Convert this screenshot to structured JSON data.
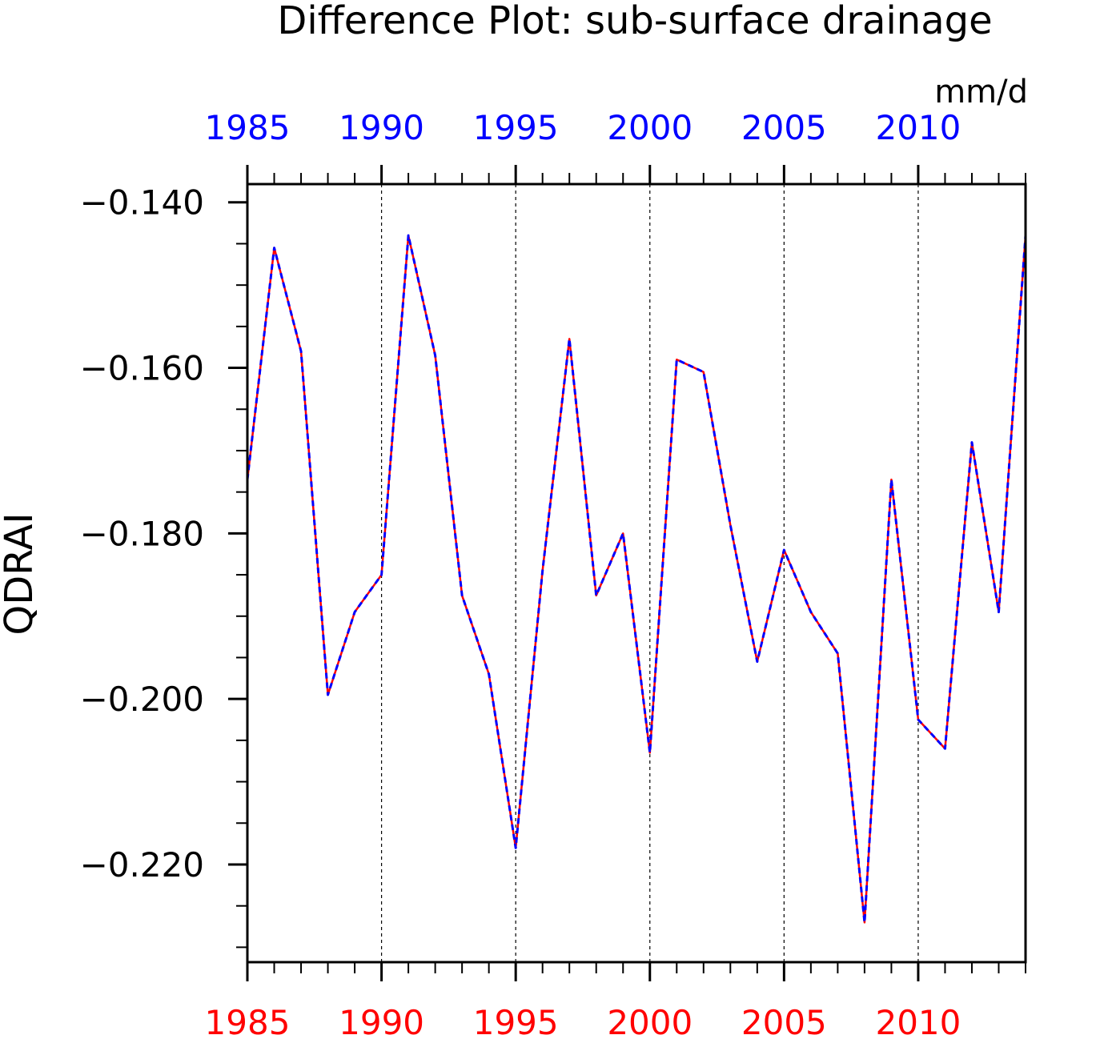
{
  "chart_data": {
    "type": "line",
    "title": "Difference Plot: sub-surface drainage",
    "units": "mm/d",
    "ylabel": "QDRAI",
    "xlabel": "",
    "xlim": [
      1985,
      2014
    ],
    "ylim": [
      -0.2318,
      -0.1378
    ],
    "x_ticks": [
      1985,
      1990,
      1995,
      2000,
      2005,
      2010
    ],
    "x_tick_labels": [
      "1985",
      "1990",
      "1995",
      "2000",
      "2005",
      "2010"
    ],
    "y_ticks": [
      -0.14,
      -0.16,
      -0.18,
      -0.2,
      -0.22
    ],
    "y_tick_labels": [
      "−0.140",
      "−0.160",
      "−0.180",
      "−0.200",
      "−0.220"
    ],
    "grid": "vertical dashed at major x ticks",
    "colors": {
      "top_axis_labels": "#0000ff",
      "bottom_axis_labels": "#ff0000",
      "series_red": "#ff0000",
      "series_blue": "#0000ff",
      "axes": "#000000"
    },
    "x": [
      1985,
      1986,
      1987,
      1988,
      1989,
      1990,
      1991,
      1992,
      1993,
      1994,
      1995,
      1996,
      1997,
      1998,
      1999,
      2000,
      2001,
      2002,
      2003,
      2004,
      2005,
      2006,
      2007,
      2008,
      2009,
      2010,
      2011,
      2012,
      2013,
      2014
    ],
    "series": [
      {
        "color": "#ff0000",
        "style": "solid",
        "values": [
          -0.1735,
          -0.1455,
          -0.158,
          -0.1995,
          -0.1895,
          -0.185,
          -0.144,
          -0.1585,
          -0.1875,
          -0.197,
          -0.218,
          -0.1845,
          -0.1565,
          -0.1875,
          -0.18,
          -0.2065,
          -0.159,
          -0.1605,
          -0.179,
          -0.1955,
          -0.182,
          -0.1895,
          -0.1945,
          -0.227,
          -0.1735,
          -0.2025,
          -0.206,
          -0.169,
          -0.1895,
          -0.144
        ]
      },
      {
        "color": "#0000ff",
        "style": "dashed",
        "values": [
          -0.1735,
          -0.1455,
          -0.158,
          -0.1995,
          -0.1895,
          -0.185,
          -0.144,
          -0.1585,
          -0.1875,
          -0.197,
          -0.218,
          -0.1845,
          -0.1565,
          -0.1875,
          -0.18,
          -0.2065,
          -0.159,
          -0.1605,
          -0.179,
          -0.1955,
          -0.182,
          -0.1895,
          -0.1945,
          -0.227,
          -0.1735,
          -0.2025,
          -0.206,
          -0.169,
          -0.1895,
          -0.144
        ]
      }
    ]
  }
}
